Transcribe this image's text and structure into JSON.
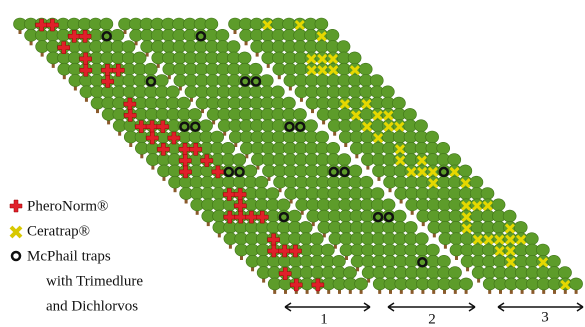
{
  "legend": [
    {
      "label": "PheroNorm®"
    },
    {
      "label": "Ceratrap®"
    },
    {
      "label": "McPhail traps",
      "label2": "with Trimedlure",
      "label3": "and Dichlorvos"
    }
  ],
  "blocks": [
    {
      "label": "1"
    },
    {
      "label": "2"
    },
    {
      "label": "3"
    }
  ]
}
